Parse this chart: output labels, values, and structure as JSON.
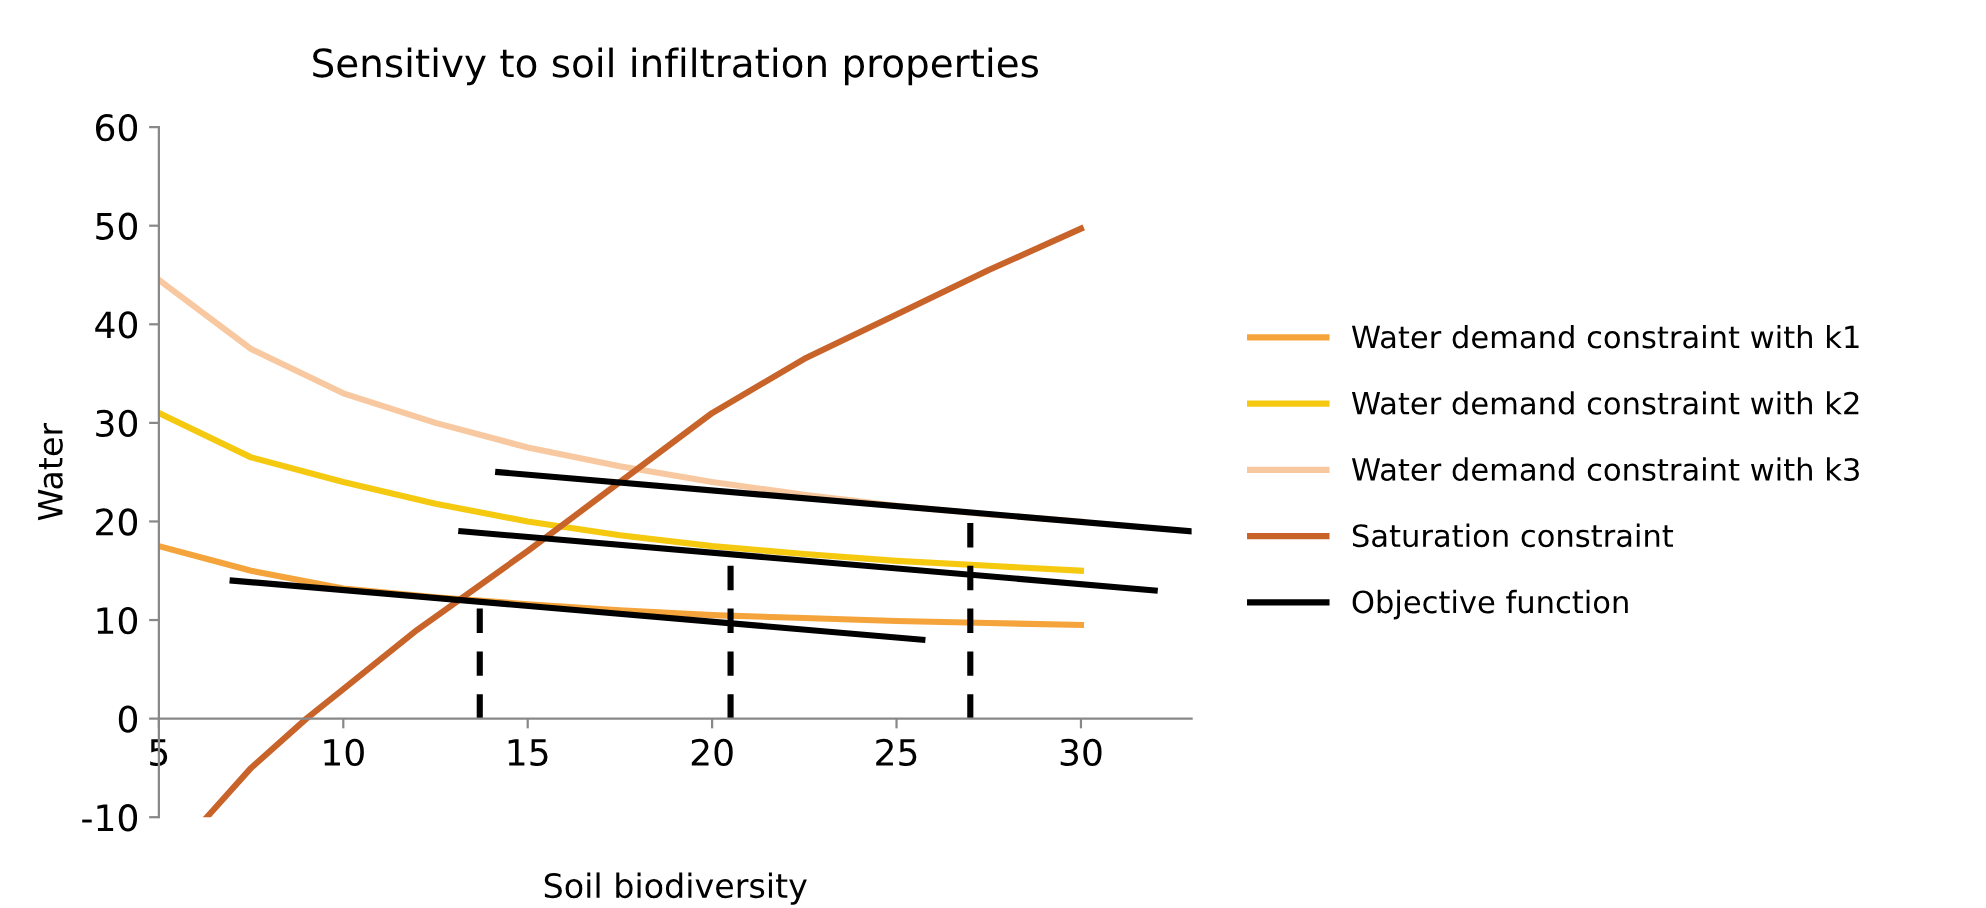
{
  "chart_data": {
    "type": "line",
    "title": "Sensitivy to soil infiltration properties",
    "xlabel": "Soil biodiversity",
    "ylabel": "Water",
    "xlim": [
      5,
      33
    ],
    "xticks": [
      5,
      10,
      15,
      20,
      25,
      30
    ],
    "ylim": [
      -10,
      60
    ],
    "yticks": [
      -10,
      0,
      10,
      20,
      30,
      40,
      50,
      60
    ],
    "grid": false,
    "legend": "right",
    "marker": "none",
    "series": [
      {
        "name": "Water demand constraint with k1",
        "color": "#f4a43a",
        "x": [
          5,
          7.5,
          10,
          12.5,
          15,
          17.5,
          20,
          22.5,
          25,
          27.5,
          30
        ],
        "values": [
          17.5,
          15,
          13.2,
          12.3,
          11.6,
          11,
          10.5,
          10.2,
          9.9,
          9.7,
          9.5
        ]
      },
      {
        "name": "Water demand constraint with k2",
        "color": "#f5c90f",
        "x": [
          5,
          7.5,
          10,
          12.5,
          15,
          17.5,
          20,
          22.5,
          25,
          27.5,
          30
        ],
        "values": [
          31,
          26.5,
          24,
          21.8,
          20,
          18.6,
          17.5,
          16.7,
          16,
          15.5,
          15
        ]
      },
      {
        "name": "Water demand constraint with k3",
        "color": "#f8c9a0",
        "x": [
          5,
          7.5,
          10,
          12.5,
          15,
          17.5,
          20,
          22.5,
          25,
          27.5,
          30
        ],
        "values": [
          44.5,
          37.5,
          33,
          30,
          27.5,
          25.6,
          24,
          22.7,
          21.6,
          20.7,
          20
        ]
      },
      {
        "name": "Saturation constraint",
        "color": "#c8642a",
        "x": [
          6.3,
          7.5,
          9,
          10,
          12,
          15,
          17.5,
          20,
          22.5,
          25,
          27.5,
          30
        ],
        "values": [
          -10,
          -5,
          0,
          3,
          9,
          17,
          24,
          31,
          36.5,
          41,
          45.5,
          49.7
        ]
      },
      {
        "name": "Objective function",
        "color": "#000000",
        "x": [
          7,
          25.7
        ],
        "values": [
          14,
          8
        ]
      },
      {
        "color": "#000000",
        "x": [
          13.2,
          32
        ],
        "values": [
          19,
          13
        ]
      },
      {
        "color": "#000000",
        "x": [
          14.2,
          33
        ],
        "values": [
          25,
          19
        ]
      },
      {
        "color": "#000000",
        "line_style": "dashed",
        "x": [
          13.7,
          13.7
        ],
        "values": [
          0,
          12
        ]
      },
      {
        "color": "#000000",
        "line_style": "dashed",
        "x": [
          20.5,
          20.5
        ],
        "values": [
          0,
          17
        ]
      },
      {
        "color": "#000000",
        "line_style": "dashed",
        "x": [
          27,
          27
        ],
        "values": [
          0,
          21
        ]
      }
    ]
  }
}
